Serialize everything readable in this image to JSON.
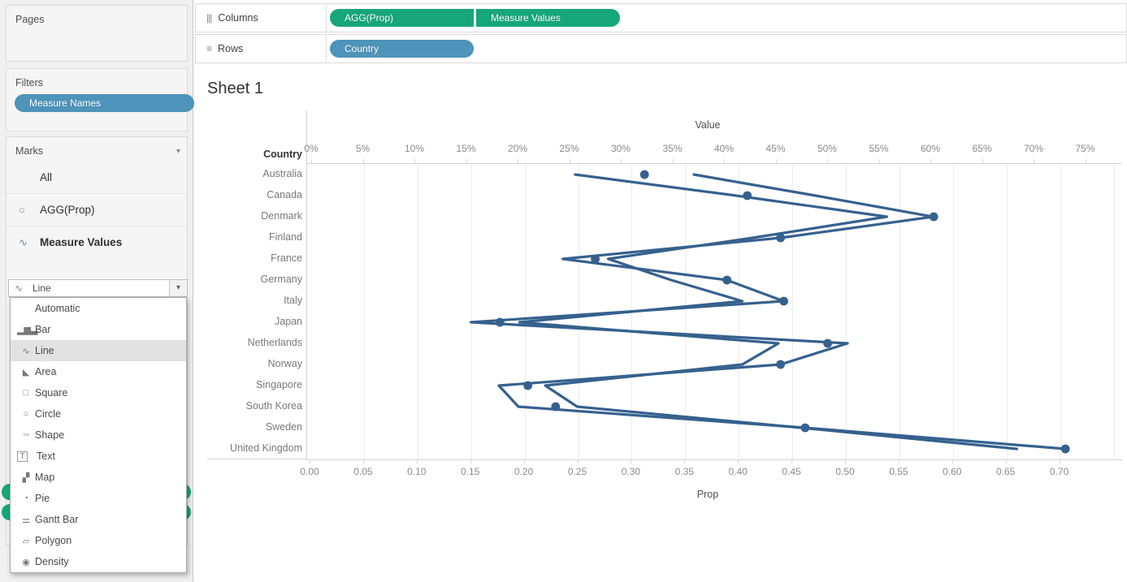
{
  "colors": {
    "pill_green": "#16a679",
    "pill_blue": "#4e93b9",
    "mark": "#35618e"
  },
  "sidebar": {
    "pages_label": "Pages",
    "filters_label": "Filters",
    "filter_pills": [
      {
        "label": "Measure Names",
        "color": "blue"
      }
    ],
    "marks_label": "Marks",
    "marks_caret": "▾",
    "marks_items": [
      {
        "label": "All",
        "icon": "",
        "bold": false
      },
      {
        "label": "AGG(Prop)",
        "icon": "○",
        "bold": false
      },
      {
        "label": "Measure Values",
        "icon": "∿",
        "bold": true
      }
    ],
    "mark_type_select": {
      "icon": "∿",
      "value": "Line",
      "caret": "▾"
    },
    "mark_type_menu": [
      {
        "label": "Automatic",
        "icon": "",
        "selected": false
      },
      {
        "label": "Bar",
        "icon": "▂▆▃",
        "selected": false
      },
      {
        "label": "Line",
        "icon": "∿",
        "selected": true
      },
      {
        "label": "Area",
        "icon": "◣",
        "selected": false
      },
      {
        "label": "Square",
        "icon": "□",
        "selected": false
      },
      {
        "label": "Circle",
        "icon": "○",
        "selected": false
      },
      {
        "label": "Shape",
        "icon": "◦▫",
        "selected": false
      },
      {
        "label": "Text",
        "icon": "T",
        "boxed": true,
        "selected": false
      },
      {
        "label": "Map",
        "icon": "▞",
        "selected": false
      },
      {
        "label": "Pie",
        "icon": "◔",
        "selected": false
      },
      {
        "label": "Gantt Bar",
        "icon": "⚌",
        "selected": false
      },
      {
        "label": "Polygon",
        "icon": "▱",
        "selected": false
      },
      {
        "label": "Density",
        "icon": "◉",
        "selected": false
      }
    ],
    "measure_values_hidden_pills": [
      "",
      ""
    ]
  },
  "shelves": {
    "columns": {
      "icon": "|||",
      "label": "Columns",
      "pills": [
        {
          "label": "AGG(Prop)",
          "color": "green"
        },
        {
          "label": "Measure Values",
          "color": "green"
        }
      ]
    },
    "rows": {
      "icon": "≡",
      "label": "Rows",
      "pills": [
        {
          "label": "Country",
          "color": "blue"
        }
      ]
    }
  },
  "sheet": {
    "title": "Sheet 1"
  },
  "chart_data": {
    "type": "line",
    "subtype": "dual-axis horizontal zigzag lines + circle marks",
    "row_header": "Country",
    "categories": [
      "Australia",
      "Canada",
      "Denmark",
      "Finland",
      "France",
      "Germany",
      "Italy",
      "Japan",
      "Netherlands",
      "Norway",
      "Singapore",
      "South Korea",
      "Sweden",
      "United Kingdom"
    ],
    "top_axis": {
      "title": "Value",
      "min": 0,
      "max": 75,
      "unit": "%",
      "tick_step": 5,
      "tick_labels": [
        "0%",
        "5%",
        "10%",
        "15%",
        "20%",
        "25%",
        "30%",
        "35%",
        "40%",
        "45%",
        "50%",
        "55%",
        "60%",
        "65%",
        "70%",
        "75%"
      ]
    },
    "bottom_axis": {
      "title": "Prop",
      "min": 0,
      "max": 0.7,
      "tick_step": 0.05,
      "tick_labels": [
        "0.00",
        "0.05",
        "0.10",
        "0.15",
        "0.20",
        "0.25",
        "0.30",
        "0.35",
        "0.40",
        "0.45",
        "0.50",
        "0.55",
        "0.60",
        "0.65",
        "0.70"
      ]
    },
    "grid": "vertical gridlines at bottom-axis ticks",
    "series": [
      {
        "name": "AGG(Prop)",
        "mark": "circle",
        "axis": "bottom",
        "values": [
          0.312,
          0.408,
          0.582,
          0.439,
          0.266,
          0.389,
          0.442,
          0.177,
          0.483,
          0.439,
          0.203,
          0.229,
          0.462,
          0.705
        ]
      },
      {
        "name": "Measure Values line 1",
        "mark": "line",
        "axis": "top",
        "unit": "%",
        "values": [
          25.5,
          41.1,
          55.7,
          42.7,
          28.7,
          34.8,
          41.7,
          20.1,
          45.2,
          41.7,
          22.6,
          25.7,
          47.4,
          68.3
        ]
      },
      {
        "name": "Measure Values line 2",
        "mark": "line",
        "axis": "top",
        "unit": "%",
        "values": [
          37.0,
          48.8,
          60.2,
          45.4,
          24.3,
          40.2,
          45.7,
          15.4,
          51.9,
          45.4,
          18.1,
          20.0,
          47.8,
          73.0
        ]
      }
    ]
  }
}
